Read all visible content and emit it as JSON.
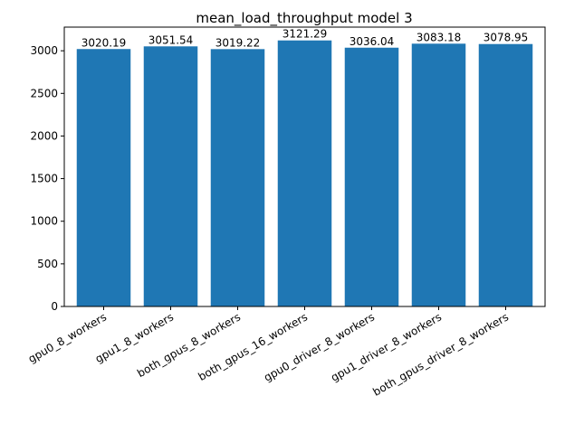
{
  "chart_data": {
    "type": "bar",
    "title": "mean_load_throughput model 3",
    "xlabel": "",
    "ylabel": "",
    "categories": [
      "gpu0_8_workers",
      "gpu1_8_workers",
      "both_gpus_8_workers",
      "both_gpus_16_workers",
      "gpu0_driver_8_workers",
      "gpu1_driver_8_workers",
      "both_gpus_driver_8_workers"
    ],
    "values": [
      3020.19,
      3051.54,
      3019.22,
      3121.29,
      3036.04,
      3083.18,
      3078.95
    ],
    "data_labels": [
      "3020.19",
      "3051.54",
      "3019.22",
      "3121.29",
      "3036.04",
      "3083.18",
      "3078.95"
    ],
    "ylim": [
      0,
      3277.35
    ],
    "yticks": [
      0,
      500,
      1000,
      1500,
      2000,
      2500,
      3000
    ],
    "bar_color": "#1f77b4",
    "grid": false,
    "legend": "none"
  }
}
